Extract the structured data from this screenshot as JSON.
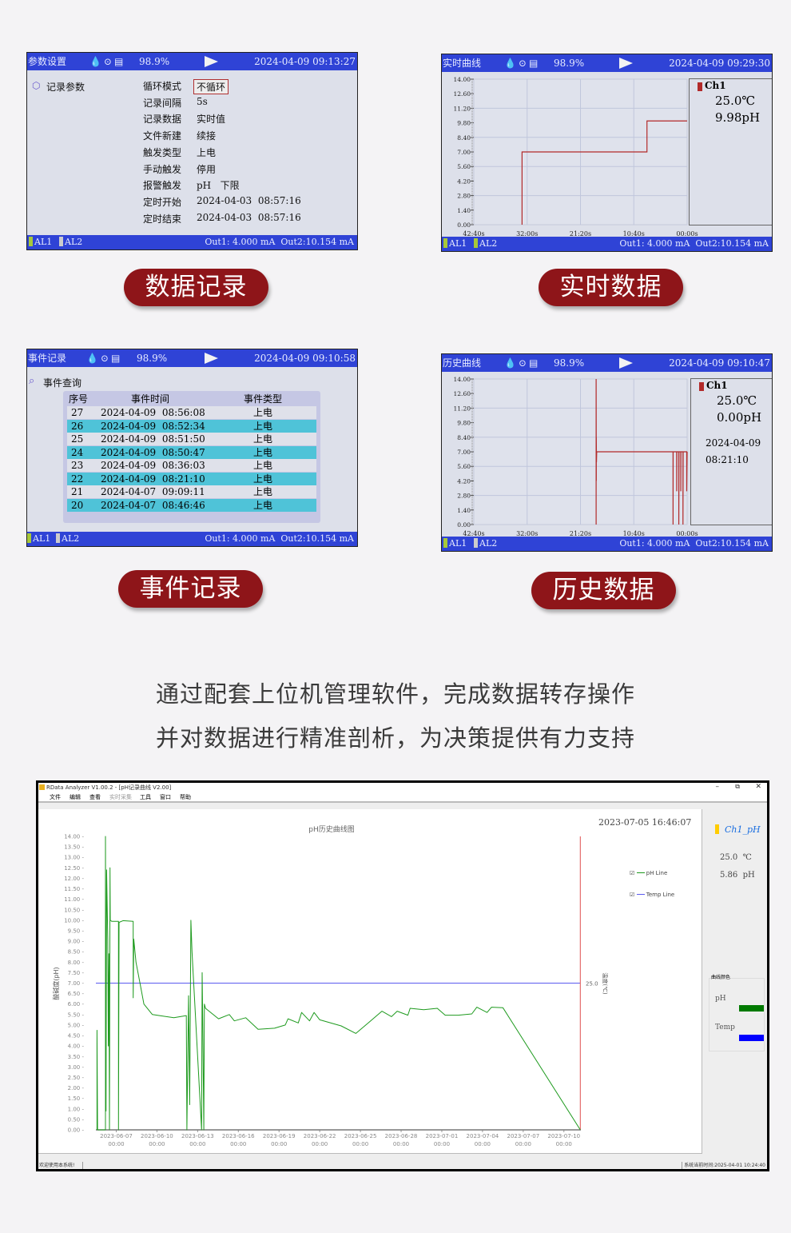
{
  "panels": {
    "record": {
      "title": "参数设置",
      "battery": "98.9%",
      "datetime": "2024-04-09 09:13:27",
      "section": "记录参数",
      "params": [
        {
          "label": "循环模式",
          "value": "不循环"
        },
        {
          "label": "记录间隔",
          "value": "5s"
        },
        {
          "label": "记录数据",
          "value": "实时值"
        },
        {
          "label": "文件新建",
          "value": "续接"
        },
        {
          "label": "触发类型",
          "value": "上电"
        },
        {
          "label": "手动触发",
          "value": "停用"
        },
        {
          "label": "报警触发",
          "value": "pH   下限"
        },
        {
          "label": "定时开始",
          "value": "2024-04-03  08:57:16"
        },
        {
          "label": "定时结束",
          "value": "2024-04-03  08:57:16"
        }
      ],
      "al1": "AL1",
      "al2": "AL2",
      "out": "Out1: 4.000 mA  Out2:10.154 mA"
    },
    "realtime": {
      "title": "实时曲线",
      "battery": "98.9%",
      "datetime": "2024-04-09 09:29:30",
      "channel": "Ch1",
      "temp": "25.0℃",
      "ph": "9.98pH",
      "al1": "AL1",
      "al2": "AL2",
      "out": "Out1: 4.000 mA  Out2:10.154 mA"
    },
    "events": {
      "title": "事件记录",
      "battery": "98.9%",
      "datetime": "2024-04-09 09:10:58",
      "section": "事件查询",
      "columns": [
        "序号",
        "事件时间",
        "事件类型"
      ],
      "rows": [
        [
          "27",
          "2024-04-09  08:56:08",
          "上电"
        ],
        [
          "26",
          "2024-04-09  08:52:34",
          "上电"
        ],
        [
          "25",
          "2024-04-09  08:51:50",
          "上电"
        ],
        [
          "24",
          "2024-04-09  08:50:47",
          "上电"
        ],
        [
          "23",
          "2024-04-09  08:36:03",
          "上电"
        ],
        [
          "22",
          "2024-04-09  08:21:10",
          "上电"
        ],
        [
          "21",
          "2024-04-07  09:09:11",
          "上电"
        ],
        [
          "20",
          "2024-04-07  08:46:46",
          "上电"
        ]
      ],
      "al1": "AL1",
      "al2": "AL2",
      "out": "Out1: 4.000 mA  Out2:10.154 mA"
    },
    "history": {
      "title": "历史曲线",
      "battery": "98.9%",
      "datetime": "2024-04-09 09:10:47",
      "channel": "Ch1",
      "temp": "25.0℃",
      "ph": "0.00pH",
      "date": "2024-04-09",
      "time": "08:21:10",
      "al1": "AL1",
      "al2": "AL2",
      "out": "Out1: 4.000 mA  Out2:10.154 mA"
    }
  },
  "badges": [
    "数据记录",
    "实时数据",
    "事件记录",
    "历史数据"
  ],
  "description": [
    "通过配套上位机管理软件，完成数据转存操作",
    "并对数据进行精准剖析，为决策提供有力支持"
  ],
  "software": {
    "title": "RData Analyzer V1.00.2 - [pH记录曲线 V2.00]",
    "menu": [
      "文件",
      "编辑",
      "查看",
      "实时采集",
      "工具",
      "窗口",
      "帮助"
    ],
    "timestamp": "2023-07-05 16:46:07",
    "channel": "Ch1_pH",
    "temp": "25.0  ℃",
    "ph": "5.86  pH",
    "legend": [
      "pH Line",
      "Temp Line"
    ],
    "color_group": "曲线颜色",
    "color_items": [
      "pH",
      "Temp"
    ],
    "status_left": "欢迎使用本系统!",
    "status_right": "系统当前时间:2025-04-01 10:24:40"
  },
  "colors": {
    "badge": "#8e1519",
    "screen_bar": "#2f43d6",
    "row_highlight": "#4fc3d8",
    "device_line": "#b22a2a",
    "ph_line": "#1e9a1e",
    "temp_line": "#5a5af0",
    "cursor": "#e05050",
    "ph_swatch": "#007a00",
    "temp_swatch": "#0000ff",
    "channel_marker": "#ffcc00"
  },
  "chart_data": [
    {
      "type": "line",
      "panel": "realtime",
      "yticks": [
        "14.00",
        "12.60",
        "11.20",
        "9.80",
        "8.40",
        "7.00",
        "5.60",
        "4.20",
        "2.80",
        "1.40",
        "0.00"
      ],
      "ylim": [
        0,
        14
      ],
      "xticks": [
        "42:40s",
        "32:00s",
        "21:20s",
        "10:40s",
        "00:00s"
      ],
      "xlim": [
        "42:40",
        "00:00"
      ],
      "series": [
        {
          "name": "Ch1",
          "points": [
            [
              "33:01",
              0
            ],
            [
              "33:01",
              7.0
            ],
            [
              "08:02",
              7.0
            ],
            [
              "08:02",
              9.98
            ],
            [
              "00:00",
              9.98
            ]
          ]
        }
      ]
    },
    {
      "type": "line",
      "panel": "history",
      "yticks": [
        "14.00",
        "12.60",
        "11.20",
        "9.80",
        "8.40",
        "7.00",
        "5.60",
        "4.20",
        "2.80",
        "1.40",
        "0.00"
      ],
      "ylim": [
        0,
        14
      ],
      "xticks": [
        "42:40s",
        "32:00s",
        "21:20s",
        "10:40s",
        "00:00s"
      ],
      "xlim": [
        "42:40",
        "00:00"
      ],
      "series": [
        {
          "name": "Ch1",
          "points": [
            [
              "18:12",
              0
            ],
            [
              "18:12",
              14
            ],
            [
              "18:10",
              4.2
            ],
            [
              "18:10",
              8.4
            ],
            [
              "18:08",
              6.0
            ],
            [
              "18:05",
              7.0
            ],
            [
              "02:49",
              7.0
            ],
            [
              "02:49",
              0
            ],
            [
              "02:48",
              7.0
            ],
            [
              "02:05",
              7.0
            ],
            [
              "02:05",
              3.2
            ],
            [
              "02:03",
              7.0
            ],
            [
              "01:40",
              7.0
            ],
            [
              "01:40",
              0
            ],
            [
              "01:38",
              7.0
            ],
            [
              "01:16",
              7.0
            ],
            [
              "01:16",
              3.2
            ],
            [
              "01:14",
              7.0
            ],
            [
              "00:50",
              7.0
            ],
            [
              "00:50",
              0
            ],
            [
              "00:48",
              7.0
            ],
            [
              "00:05",
              7.0
            ],
            [
              "00:05",
              3.2
            ],
            [
              "00:00",
              7.0
            ]
          ]
        }
      ]
    },
    {
      "type": "line",
      "panel": "software",
      "title": "pH历史曲线图",
      "ylabel": "酸碱度(pH)",
      "y2label": "温度(℃)",
      "ylim": [
        0,
        14
      ],
      "yticks": [
        "14.00",
        "13.50",
        "13.00",
        "12.50",
        "12.00",
        "11.50",
        "11.00",
        "10.50",
        "10.00",
        "9.50",
        "9.00",
        "8.50",
        "8.00",
        "7.50",
        "7.00",
        "6.50",
        "6.00",
        "5.50",
        "5.00",
        "4.50",
        "4.00",
        "3.50",
        "3.00",
        "2.50",
        "2.00",
        "1.50",
        "1.00",
        "0.50",
        "0.00"
      ],
      "xticks": [
        "2023-06-07",
        "2023-06-10",
        "2023-06-13",
        "2023-06-16",
        "2023-06-19",
        "2023-06-22",
        "2023-06-25",
        "2023-06-28",
        "2023-07-01",
        "2023-07-04",
        "2023-07-07",
        "2023-07-10"
      ],
      "xtick_time": "00:00",
      "xlim": [
        "2023-06-05 12:00",
        "2023-07-11 06:00"
      ],
      "y2tick": "25.0",
      "cursor": "2023-07-11 05:00",
      "series": [
        {
          "name": "pH Line",
          "points": [
            [
              "2023-06-05 14:00",
              0
            ],
            [
              "2023-06-05 14:00",
              4.75
            ],
            [
              "2023-06-05 15:00",
              0
            ],
            [
              "2023-06-06 05:00",
              0
            ],
            [
              "2023-06-06 05:00",
              14
            ],
            [
              "2023-06-06 06:00",
              0.9
            ],
            [
              "2023-06-06 07:00",
              12.4
            ],
            [
              "2023-06-06 09:00",
              9.1
            ],
            [
              "2023-06-06 10:00",
              4.0
            ],
            [
              "2023-06-06 11:00",
              8.4
            ],
            [
              "2023-06-06 12:00",
              0
            ],
            [
              "2023-06-06 13:00",
              12.5
            ],
            [
              "2023-06-06 13:30",
              10.0
            ],
            [
              "2023-06-06 16:00",
              9.95
            ],
            [
              "2023-06-07 04:00",
              9.95
            ],
            [
              "2023-06-07 04:00",
              0
            ],
            [
              "2023-06-07 05:00",
              9.9
            ],
            [
              "2023-06-07 12:00",
              9.98
            ],
            [
              "2023-06-08 06:00",
              9.95
            ],
            [
              "2023-06-08 06:00",
              6.3
            ],
            [
              "2023-06-08 07:00",
              9.1
            ],
            [
              "2023-06-08 11:00",
              8.0
            ],
            [
              "2023-06-08 18:00",
              7.0
            ],
            [
              "2023-06-09 01:00",
              6.0
            ],
            [
              "2023-06-09 16:00",
              5.5
            ],
            [
              "2023-06-11 06:00",
              5.35
            ],
            [
              "2023-06-12 04:00",
              5.45
            ],
            [
              "2023-06-12 05:00",
              0
            ],
            [
              "2023-06-12 08:00",
              6.4
            ],
            [
              "2023-06-12 10:00",
              1.2
            ],
            [
              "2023-06-12 12:00",
              10.0
            ],
            [
              "2023-06-12 14:00",
              8.5
            ],
            [
              "2023-06-13 07:00",
              0
            ],
            [
              "2023-06-13 08:00",
              7.5
            ],
            [
              "2023-06-13 09:00",
              5.3
            ],
            [
              "2023-06-13 11:00",
              0
            ],
            [
              "2023-06-13 12:00",
              6.0
            ],
            [
              "2023-06-13 14:00",
              5.8
            ],
            [
              "2023-06-14 13:00",
              5.3
            ],
            [
              "2023-06-15 08:00",
              5.5
            ],
            [
              "2023-06-15 17:00",
              5.2
            ],
            [
              "2023-06-16 13:00",
              5.35
            ],
            [
              "2023-06-17 11:00",
              4.8
            ],
            [
              "2023-06-18 16:00",
              4.85
            ],
            [
              "2023-06-19 11:00",
              5.0
            ],
            [
              "2023-06-19 16:00",
              5.3
            ],
            [
              "2023-06-20 10:00",
              5.1
            ],
            [
              "2023-06-20 16:00",
              5.6
            ],
            [
              "2023-06-21 06:00",
              5.2
            ],
            [
              "2023-06-21 14:00",
              5.6
            ],
            [
              "2023-06-22 00:00",
              5.25
            ],
            [
              "2023-06-23 14:00",
              4.96
            ],
            [
              "2023-06-24 16:00",
              4.6
            ],
            [
              "2023-06-25 16:00",
              5.15
            ],
            [
              "2023-06-26 14:00",
              5.66
            ],
            [
              "2023-06-27 07:00",
              5.4
            ],
            [
              "2023-06-27 17:00",
              5.66
            ],
            [
              "2023-06-28 12:00",
              5.47
            ],
            [
              "2023-06-28 16:00",
              5.8
            ],
            [
              "2023-06-29 16:00",
              5.73
            ],
            [
              "2023-06-30 16:00",
              5.8
            ],
            [
              "2023-07-01 06:00",
              5.47
            ],
            [
              "2023-07-02 05:00",
              5.47
            ],
            [
              "2023-07-03 05:00",
              5.53
            ],
            [
              "2023-07-03 14:00",
              5.85
            ],
            [
              "2023-07-04 08:00",
              5.6
            ],
            [
              "2023-07-04 16:00",
              5.85
            ],
            [
              "2023-07-05 12:00",
              5.83
            ],
            [
              "2023-07-11 05:00",
              0
            ]
          ]
        },
        {
          "name": "Temp Line",
          "axis": "right",
          "value": 25.0,
          "points": [
            [
              "2023-06-05 12:00",
              25.0
            ],
            [
              "2023-07-11 05:00",
              25.0
            ]
          ]
        }
      ]
    }
  ]
}
